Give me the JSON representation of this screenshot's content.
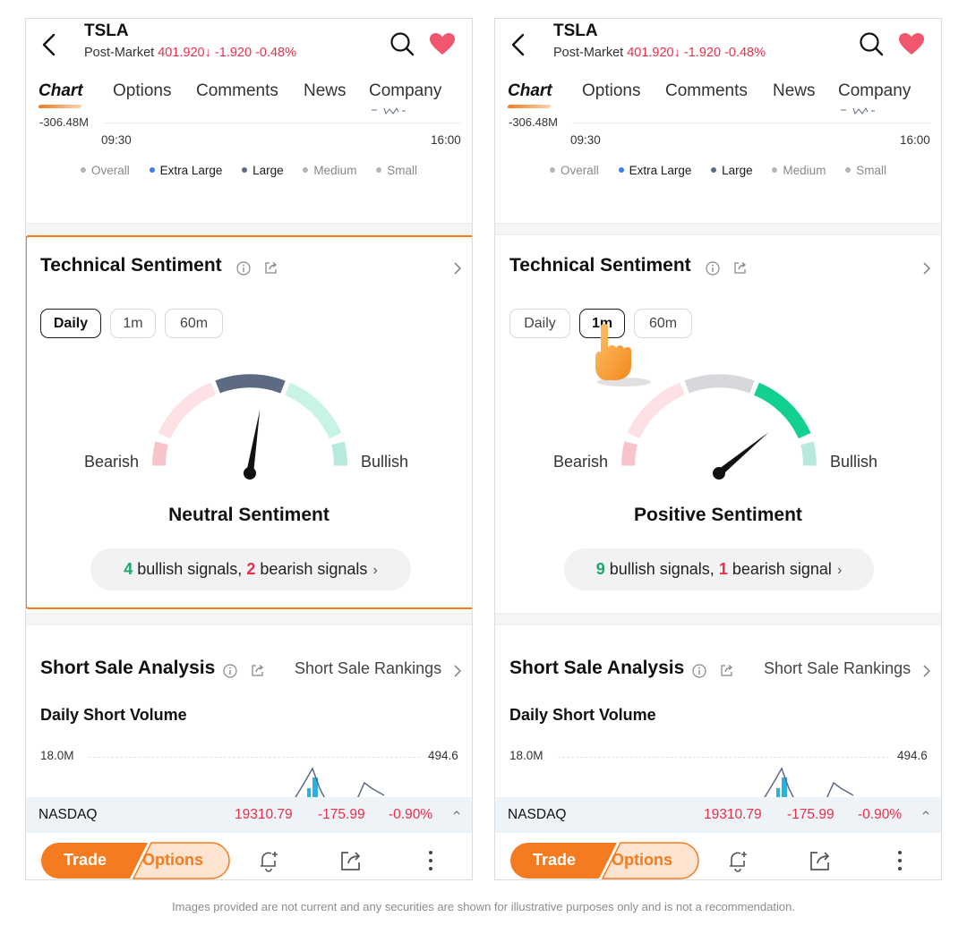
{
  "screens": [
    {
      "ticker": "TSLA",
      "post_market_label": "Post-Market",
      "price": "401.920",
      "change": "-1.920",
      "change_pct": "-0.48%",
      "tabs": [
        "Chart",
        "Options",
        "Comments",
        "News",
        "Company"
      ],
      "chart": {
        "y_tick": "-306.48M",
        "time_start": "09:30",
        "time_end": "16:00",
        "legend": [
          "Overall",
          "Extra Large",
          "Large",
          "Medium",
          "Small"
        ]
      },
      "technical_sentiment": {
        "title": "Technical Sentiment",
        "periods": [
          "Daily",
          "1m",
          "60m"
        ],
        "selected_period": "Daily",
        "bearish_label": "Bearish",
        "bullish_label": "Bullish",
        "sentiment": "Neutral Sentiment",
        "gauge_level": 0.55,
        "bullish_count": "4",
        "bullish_text": "bullish signals,",
        "bearish_count": "2",
        "bearish_text": "bearish signals",
        "highlighted": true
      },
      "short_sale": {
        "title": "Short Sale Analysis",
        "rankings_link": "Short Sale Rankings",
        "daily_short_volume": "Daily Short Volume",
        "y_left": "18.0M",
        "y_right": "494.6"
      },
      "index_bar": {
        "name": "NASDAQ",
        "value": "19310.79",
        "change": "-175.99",
        "change_pct": "-0.90%"
      },
      "bottom": {
        "trade": "Trade",
        "options": "Options"
      }
    },
    {
      "ticker": "TSLA",
      "post_market_label": "Post-Market",
      "price": "401.920",
      "change": "-1.920",
      "change_pct": "-0.48%",
      "tabs": [
        "Chart",
        "Options",
        "Comments",
        "News",
        "Company"
      ],
      "chart": {
        "y_tick": "-306.48M",
        "time_start": "09:30",
        "time_end": "16:00",
        "legend": [
          "Overall",
          "Extra Large",
          "Large",
          "Medium",
          "Small"
        ]
      },
      "technical_sentiment": {
        "title": "Technical Sentiment",
        "periods": [
          "Daily",
          "1m",
          "60m"
        ],
        "selected_period": "1m",
        "bearish_label": "Bearish",
        "bullish_label": "Bullish",
        "sentiment": "Positive Sentiment",
        "gauge_level": 0.78,
        "bullish_count": "9",
        "bullish_text": "bullish signals,",
        "bearish_count": "1",
        "bearish_text": "bearish signal",
        "highlighted": false
      },
      "short_sale": {
        "title": "Short Sale Analysis",
        "rankings_link": "Short Sale Rankings",
        "daily_short_volume": "Daily Short Volume",
        "y_left": "18.0M",
        "y_right": "494.6"
      },
      "index_bar": {
        "name": "NASDAQ",
        "value": "19310.79",
        "change": "-175.99",
        "change_pct": "-0.90%"
      },
      "bottom": {
        "trade": "Trade",
        "options": "Options"
      }
    }
  ],
  "colors": {
    "accent": "#f47b20",
    "down": "#e8304a",
    "up": "#1aa86a",
    "heart": "#f0566e",
    "legend_extra_large": "#3d7cf2",
    "legend_large": "#5c6a82",
    "legend_muted": "#b5b5b5"
  },
  "disclaimer": "Images provided are not current and any securities are shown for illustrative purposes only and is not a recommendation."
}
